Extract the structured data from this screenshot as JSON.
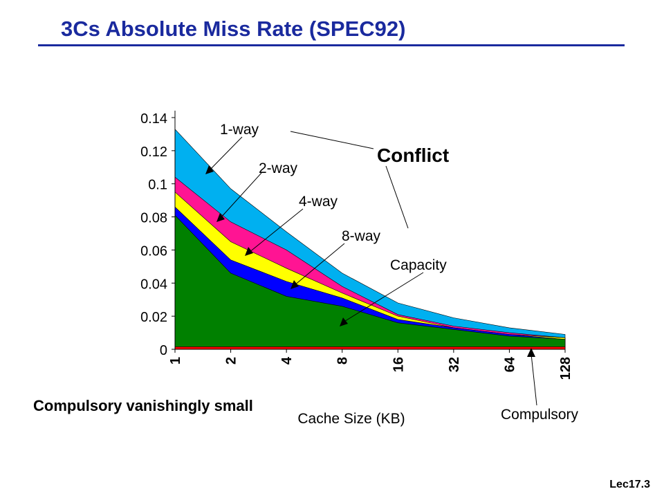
{
  "slide": {
    "title": "3Cs Absolute Miss Rate (SPEC92)",
    "footer_note": "Compulsory vanishingly small",
    "page_number": "Lec17.3"
  },
  "chart_data": {
    "type": "area",
    "title": "",
    "xlabel": "Cache Size (KB)",
    "ylabel": "",
    "categories": [
      "1",
      "2",
      "4",
      "8",
      "16",
      "32",
      "64",
      "128"
    ],
    "ylim": [
      0,
      0.14
    ],
    "yticks": [
      "0",
      "0.02",
      "0.04",
      "0.06",
      "0.08",
      "0.1",
      "0.12",
      "0.14"
    ],
    "grid": false,
    "legend": "none",
    "series_cumulative": [
      {
        "name": "1-way",
        "color": "#00b0f0",
        "values": [
          0.133,
          0.097,
          0.071,
          0.046,
          0.028,
          0.019,
          0.013,
          0.009
        ]
      },
      {
        "name": "2-way",
        "color": "#ff1493",
        "values": [
          0.104,
          0.077,
          0.06,
          0.038,
          0.021,
          0.014,
          0.01,
          0.007
        ]
      },
      {
        "name": "4-way",
        "color": "#ffff00",
        "values": [
          0.095,
          0.065,
          0.049,
          0.034,
          0.02,
          0.013,
          0.009,
          0.007
        ]
      },
      {
        "name": "8-way",
        "color": "#0000ff",
        "values": [
          0.086,
          0.054,
          0.041,
          0.031,
          0.018,
          0.013,
          0.009,
          0.006
        ]
      },
      {
        "name": "Capacity",
        "color": "#008000",
        "values": [
          0.081,
          0.046,
          0.032,
          0.026,
          0.016,
          0.012,
          0.008,
          0.006
        ]
      },
      {
        "name": "Compulsory",
        "color": "#ff0000",
        "values": [
          0.0015,
          0.0015,
          0.0015,
          0.0015,
          0.0015,
          0.0015,
          0.0015,
          0.0015
        ]
      }
    ],
    "annotations": {
      "conflict": "Conflict",
      "capacity": "Capacity",
      "compulsory": "Compulsory"
    }
  }
}
